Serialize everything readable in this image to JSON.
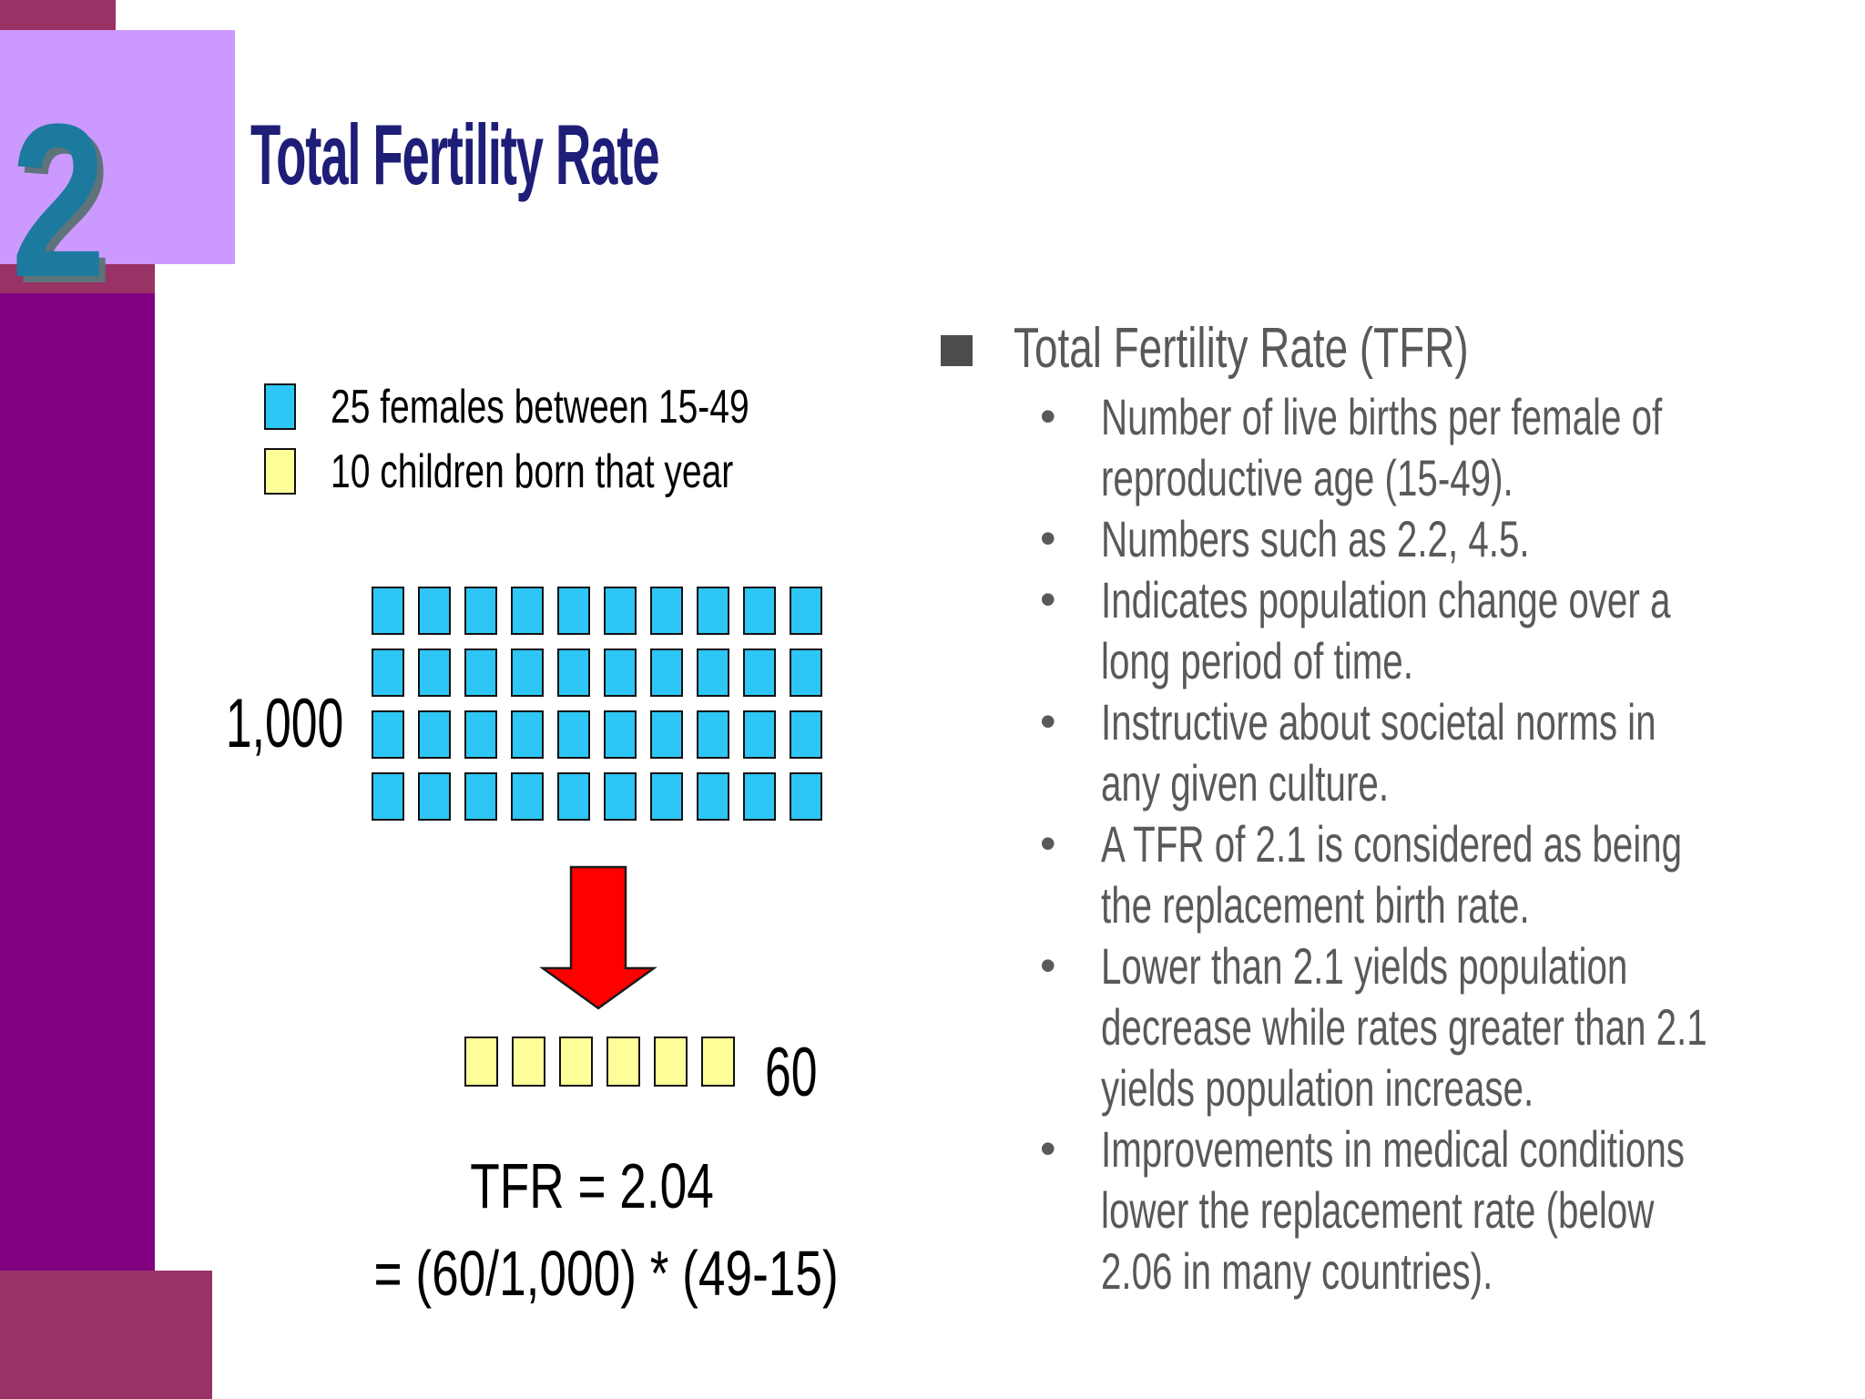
{
  "slide_number": "2",
  "title": "Total Fertility Rate",
  "legend": {
    "items": [
      {
        "label": "25 females between 15-49",
        "color": "#2EC6F5"
      },
      {
        "label": "10 children born that year",
        "color": "#FFFF99"
      }
    ]
  },
  "diagram": {
    "females_grid": {
      "count": 40,
      "columns": 10,
      "color": "#2EC6F5",
      "label": "1,000"
    },
    "arrow": "red-down-arrow",
    "children_grid": {
      "count": 6,
      "columns": 6,
      "color": "#FFFF99",
      "label": "60"
    },
    "formula_line1": "TFR = 2.04",
    "formula_line2": "= (60/1,000) * (49-15)"
  },
  "right_panel": {
    "heading": "Total Fertility Rate (TFR)",
    "bullet_glyph": "•",
    "bullets": [
      {
        "lines": [
          "Number of live births per female of",
          "reproductive age (15-49)."
        ]
      },
      {
        "lines": [
          "Numbers such as 2.2, 4.5."
        ]
      },
      {
        "lines": [
          "Indicates population change over a",
          "long period of time."
        ]
      },
      {
        "lines": [
          "Instructive about societal norms in",
          "any given culture."
        ]
      },
      {
        "lines": [
          "A TFR of 2.1 is considered as being",
          "the replacement birth rate."
        ]
      },
      {
        "lines": [
          "Lower than 2.1 yields population",
          "decrease while rates greater than 2.1",
          "yields population increase."
        ]
      },
      {
        "lines": [
          "Improvements in medical conditions",
          "lower the replacement rate (below",
          "2.06 in many countries)."
        ]
      }
    ]
  },
  "colors": {
    "lavender": "#CC99FF",
    "maroon": "#993366",
    "purple": "#800080",
    "title_navy": "#1E1E78",
    "number_teal": "#1B7A9E",
    "female_cyan": "#2EC6F5",
    "child_yellow": "#FFFF99",
    "arrow_red": "#FF0000",
    "body_gray": "#595959"
  }
}
